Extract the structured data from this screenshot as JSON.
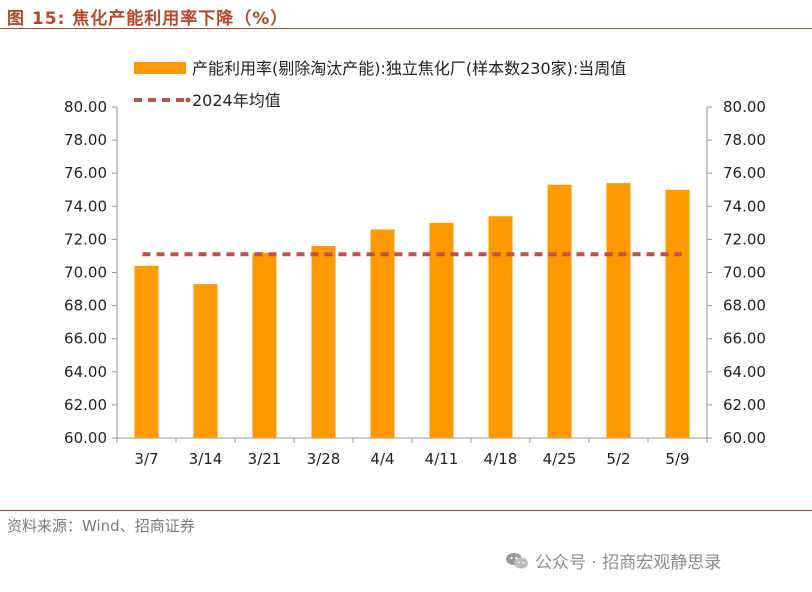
{
  "figure": {
    "number": "图 15:",
    "title": "焦化产能利用率下降（%）",
    "source": "资料来源：Wind、招商证券",
    "watermark": "公众号 · 招商宏观静思录"
  },
  "colors": {
    "bar": "#ff9900",
    "avg_line": "#c0504d",
    "title": "#b5482a"
  },
  "chart_data": {
    "type": "bar",
    "categories": [
      "3/7",
      "3/14",
      "3/21",
      "3/28",
      "4/4",
      "4/11",
      "4/18",
      "4/25",
      "5/2",
      "5/9"
    ],
    "series": [
      {
        "name": "产能利用率(剔除淘汰产能):独立焦化厂(样本数230家):当周值",
        "type": "bar",
        "values": [
          70.4,
          69.3,
          71.2,
          71.6,
          72.6,
          73.0,
          73.4,
          75.3,
          75.4,
          75.0
        ]
      },
      {
        "name": "2024年均值",
        "type": "line",
        "style": "dashed",
        "value": 71.1
      }
    ],
    "ylim": [
      60,
      80
    ],
    "yticks": [
      "60.00",
      "62.00",
      "64.00",
      "66.00",
      "68.00",
      "70.00",
      "72.00",
      "74.00",
      "76.00",
      "78.00",
      "80.00"
    ],
    "y2ticks": [
      "60.00",
      "62.00",
      "64.00",
      "66.00",
      "68.00",
      "70.00",
      "72.00",
      "74.00",
      "76.00",
      "78.00",
      "80.00"
    ],
    "legend_position": "top",
    "grid": false
  }
}
